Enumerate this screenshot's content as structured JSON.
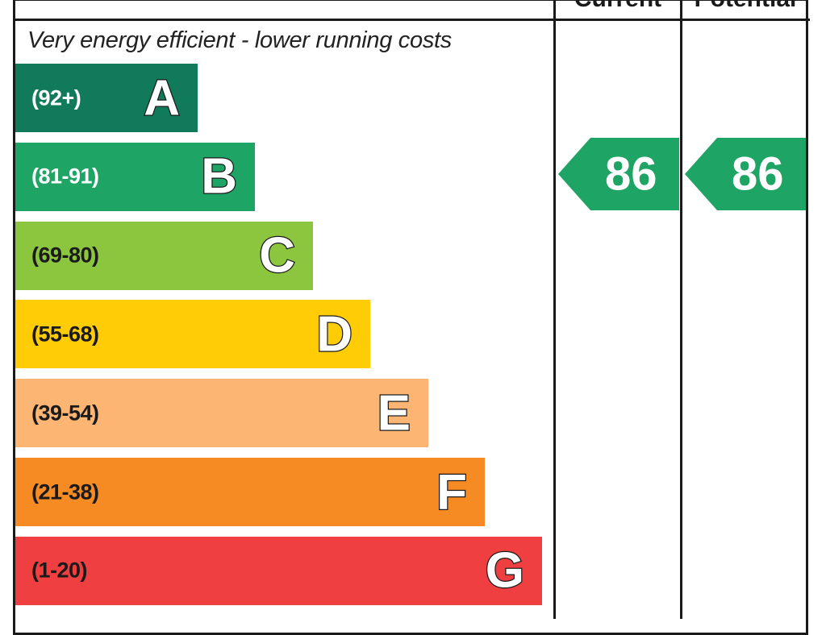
{
  "header": {
    "current_label": "Current",
    "potential_label": "Potential"
  },
  "chart_data": {
    "type": "bar",
    "caption": "Very energy efficient - lower running costs",
    "bands": [
      {
        "letter": "A",
        "range": "(92+)",
        "color": "#117a5a",
        "text_color": "#ffffff"
      },
      {
        "letter": "B",
        "range": "(81-91)",
        "color": "#1ea464",
        "text_color": "#ffffff"
      },
      {
        "letter": "C",
        "range": "(69-80)",
        "color": "#8cc63e",
        "text_color": "#1a1a1a"
      },
      {
        "letter": "D",
        "range": "(55-68)",
        "color": "#ffcc05",
        "text_color": "#1a1a1a"
      },
      {
        "letter": "E",
        "range": "(39-54)",
        "color": "#fcb573",
        "text_color": "#1a1a1a"
      },
      {
        "letter": "F",
        "range": "(21-38)",
        "color": "#f68b23",
        "text_color": "#1a1a1a"
      },
      {
        "letter": "G",
        "range": "(1-20)",
        "color": "#ef3f41",
        "text_color": "#1a1a1a"
      }
    ],
    "current": {
      "value": "86",
      "band": "B",
      "color": "#1ea464"
    },
    "potential": {
      "value": "86",
      "band": "B",
      "color": "#1ea464"
    }
  }
}
